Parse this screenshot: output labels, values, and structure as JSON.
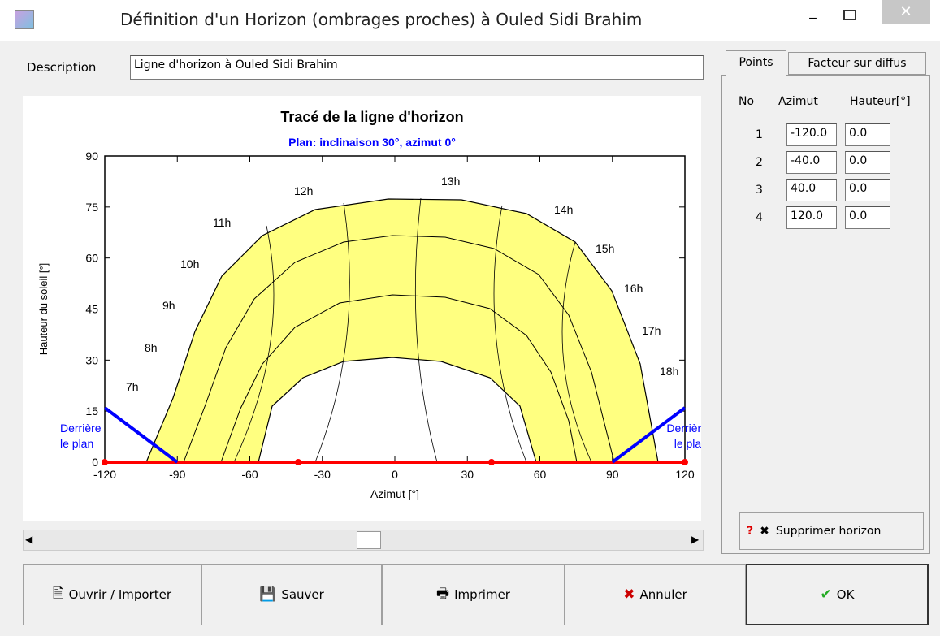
{
  "window": {
    "title": "Définition d'un Horizon  (ombrages proches) à Ouled Sidi Brahim"
  },
  "description": {
    "label": "Description",
    "value": "Ligne d'horizon à Ouled Sidi Brahim"
  },
  "tabs": [
    "Points",
    "Facteur sur diffus"
  ],
  "points_table": {
    "headers": [
      "No",
      "Azimut",
      "Hauteur[°]"
    ],
    "rows": [
      [
        "1",
        "-120.0",
        "0.0"
      ],
      [
        "2",
        "-40.0",
        "0.0"
      ],
      [
        "3",
        "40.0",
        "0.0"
      ],
      [
        "4",
        "120.0",
        "0.0"
      ]
    ]
  },
  "delete_button": "Supprimer horizon",
  "buttons": [
    "Ouvrir / Importer",
    "Sauver",
    "Imprimer",
    "Annuler",
    "OK"
  ],
  "chart_data": {
    "type": "line",
    "title": "Tracé de la ligne d'horizon",
    "subtitle": "Plan: inclinaison 30°, azimut 0°",
    "x_label": "Azimut [°]",
    "y_label": "Hauteur du soleil [°]",
    "xlim": [
      -120,
      120
    ],
    "ylim": [
      0,
      90
    ],
    "xticks": [
      -120,
      -90,
      -60,
      -30,
      0,
      30,
      60,
      90,
      120
    ],
    "yticks": [
      0,
      15,
      30,
      45,
      60,
      75,
      90
    ],
    "series": [
      {
        "color": "#ff0000",
        "x": [
          -120,
          -40,
          40,
          120
        ],
        "values": [
          0,
          0,
          0,
          0
        ],
        "markers": true
      },
      {
        "color": "#0000ff",
        "x": [
          -120,
          -90
        ],
        "values": [
          16,
          0
        ]
      },
      {
        "color": "#0000ff",
        "x": [
          90,
          120
        ],
        "values": [
          0,
          16
        ]
      }
    ],
    "hour_labels": [
      "7h",
      "8h",
      "9h",
      "10h",
      "11h",
      "12h",
      "13h",
      "14h",
      "15h",
      "16h",
      "17h",
      "18h"
    ],
    "annotations": [
      {
        "lines": [
          "Derrière",
          "le plan"
        ]
      },
      {
        "lines": [
          "Derrière",
          "le plan"
        ]
      }
    ]
  }
}
